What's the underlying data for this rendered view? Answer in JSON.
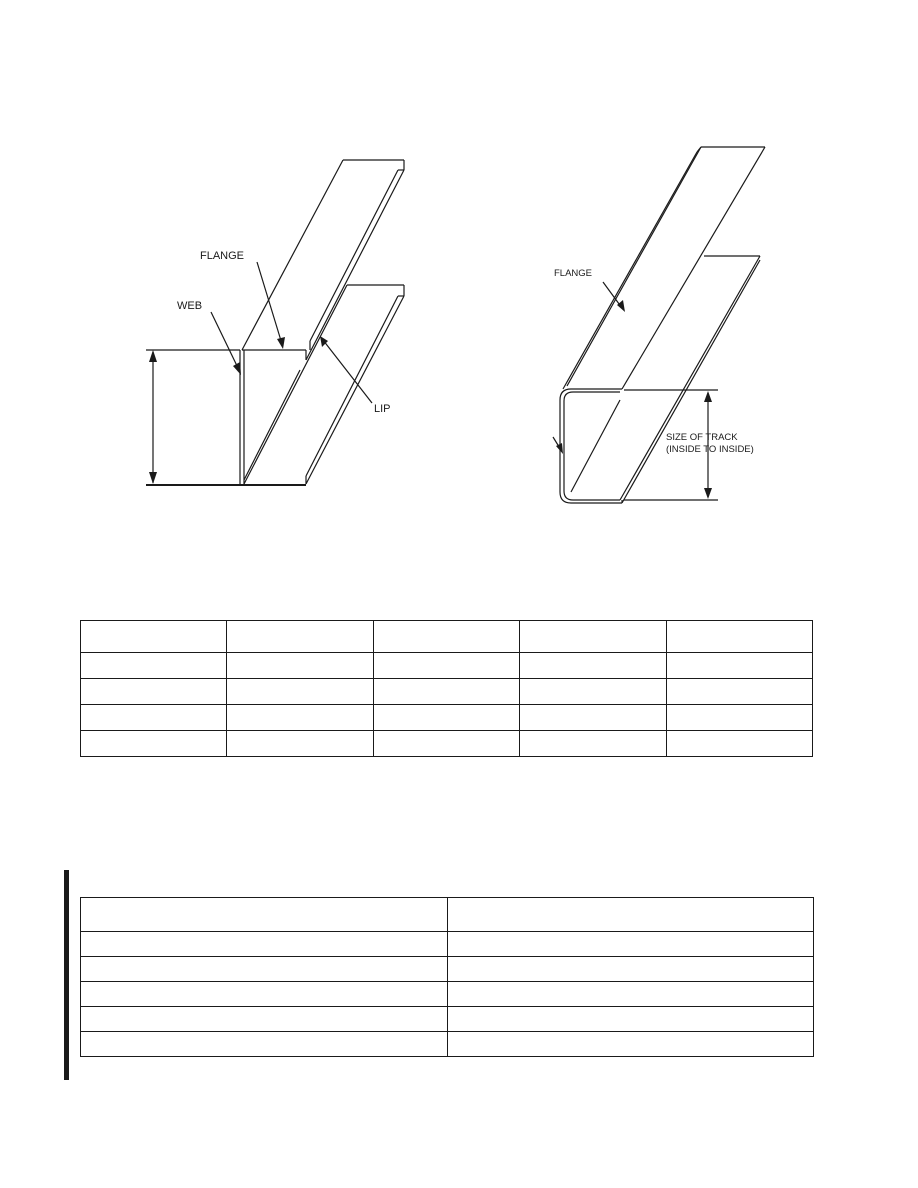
{
  "stud_figure": {
    "labels": {
      "flange": "FLANGE",
      "web": "WEB",
      "lip": "LIP"
    }
  },
  "track_figure": {
    "labels": {
      "flange": "FLANGE",
      "size_line1": "SIZE OF TRACK",
      "size_line2": "(INSIDE TO INSIDE)"
    }
  },
  "table_one": {
    "columns": 5,
    "rows": [
      [
        "",
        "",
        "",
        "",
        ""
      ],
      [
        "",
        "",
        "",
        "",
        ""
      ],
      [
        "",
        "",
        "",
        "",
        ""
      ],
      [
        "",
        "",
        "",
        "",
        ""
      ],
      [
        "",
        "",
        "",
        "",
        ""
      ]
    ]
  },
  "table_two": {
    "columns": 2,
    "rows": [
      [
        "",
        ""
      ],
      [
        "",
        ""
      ],
      [
        "",
        ""
      ],
      [
        "",
        ""
      ],
      [
        "",
        ""
      ],
      [
        "",
        ""
      ]
    ]
  }
}
